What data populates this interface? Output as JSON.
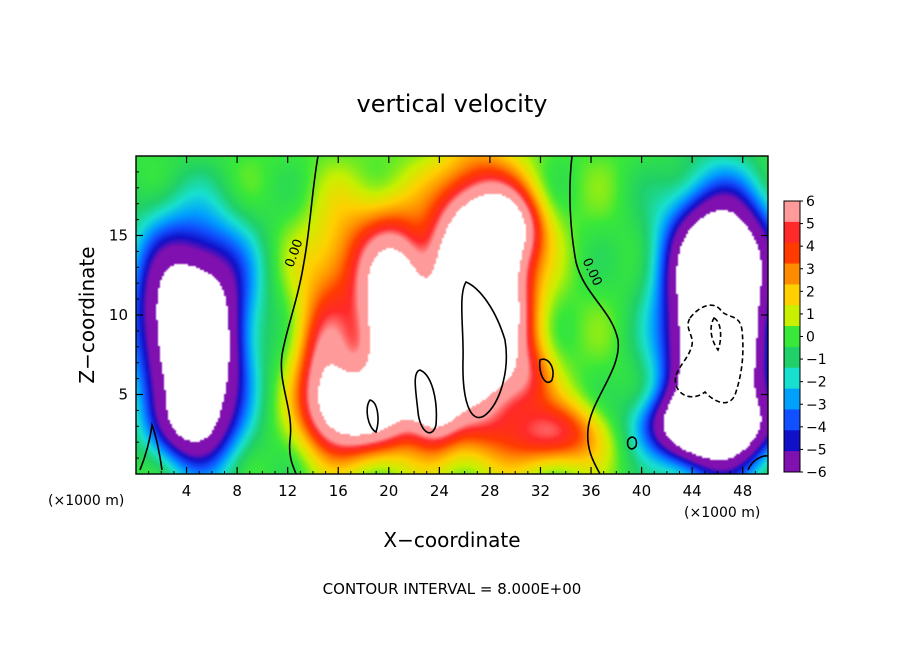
{
  "chart_data": {
    "type": "heatmap",
    "title": "vertical velocity",
    "xlabel": "X−coordinate",
    "ylabel": "Z−coordinate",
    "x_unit_label": "(×1000 m)",
    "z_unit_label": "(×1000 m)",
    "footer": "CONTOUR INTERVAL = 8.000E+00",
    "xlim": [
      0,
      50
    ],
    "ylim": [
      0,
      20
    ],
    "x_ticks": [
      "4",
      "8",
      "12",
      "16",
      "20",
      "24",
      "28",
      "32",
      "36",
      "40",
      "44",
      "48"
    ],
    "y_ticks": [
      "5",
      "10",
      "15"
    ],
    "colorbar": {
      "levels": [
        "6",
        "5",
        "4",
        "3",
        "2",
        "1",
        "0",
        "−1",
        "−2",
        "−3",
        "−4",
        "−5",
        "−6"
      ],
      "colors": [
        "#ff9a9a",
        "#ff2a2a",
        "#ff3b00",
        "#ff8c00",
        "#ffd000",
        "#c8f000",
        "#39e839",
        "#20d068",
        "#18e0d0",
        "#00a0ff",
        "#1050ff",
        "#1010c8",
        "#8010b0"
      ]
    },
    "contour_labels": [
      {
        "text": "0.00",
        "x": 12.8,
        "z": 13.8
      },
      {
        "text": "0.00",
        "x": 35.8,
        "z": 12.6
      }
    ],
    "features": [
      {
        "kind": "updraft",
        "x": 27.0,
        "z": 10.0,
        "peak": 20
      },
      {
        "kind": "updraft",
        "x": 20.5,
        "z": 9.0,
        "peak": 14
      },
      {
        "kind": "updraft",
        "x": 17.5,
        "z": 4.0,
        "peak": 10
      },
      {
        "kind": "updraft",
        "x": 23.5,
        "z": 5.5,
        "peak": 12
      },
      {
        "kind": "downdraft",
        "x": 46.0,
        "z": 8.5,
        "peak": -16
      },
      {
        "kind": "downdraft",
        "x": 5.5,
        "z": 7.5,
        "peak": -10
      },
      {
        "kind": "downdraft",
        "x": 2.5,
        "z": 10.0,
        "peak": -7
      }
    ]
  }
}
